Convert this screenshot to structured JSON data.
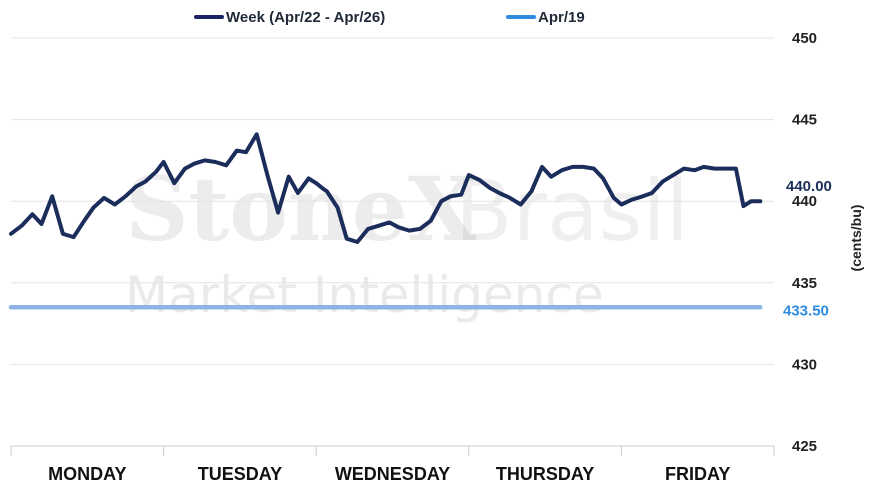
{
  "watermark": {
    "brand_bold": "StoneX",
    "brand_light": "Brasil",
    "subtitle": "Market Intelligence"
  },
  "chart_data": {
    "type": "line",
    "title": "",
    "xlabel": "",
    "ylabel": "(cents/bu)",
    "ylim": [
      425,
      451
    ],
    "yticks": [
      425,
      430,
      435,
      440,
      445,
      450
    ],
    "grid": true,
    "legend_position": "top",
    "categories": [
      "MONDAY",
      "TUESDAY",
      "WEDNESDAY",
      "THURSDAY",
      "FRIDAY"
    ],
    "series": [
      {
        "name": "Week (Apr/22 - Apr/26)",
        "color": "#1b2d5b",
        "end_label": "440.00",
        "x": [
          0.0,
          0.07,
          0.14,
          0.2,
          0.27,
          0.34,
          0.41,
          0.48,
          0.54,
          0.61,
          0.68,
          0.75,
          0.82,
          0.88,
          0.95,
          1.0,
          1.07,
          1.14,
          1.2,
          1.27,
          1.34,
          1.41,
          1.48,
          1.54,
          1.61,
          1.68,
          1.75,
          1.82,
          1.88,
          1.95,
          2.0,
          2.04,
          2.07,
          2.14,
          2.2,
          2.27,
          2.34,
          2.41,
          2.48,
          2.54,
          2.61,
          2.68,
          2.75,
          2.82,
          2.88,
          2.95,
          3.0,
          3.07,
          3.14,
          3.2,
          3.27,
          3.34,
          3.41,
          3.48,
          3.54,
          3.61,
          3.68,
          3.75,
          3.82,
          3.88,
          3.95,
          4.0,
          4.07,
          4.14,
          4.2,
          4.27,
          4.34,
          4.41,
          4.48,
          4.54,
          4.61,
          4.68,
          4.75,
          4.8,
          4.85,
          4.91
        ],
        "values": [
          438.0,
          438.5,
          439.2,
          438.6,
          440.3,
          438.0,
          437.8,
          438.8,
          439.6,
          440.2,
          439.8,
          440.3,
          440.9,
          441.2,
          441.8,
          442.4,
          441.1,
          442.0,
          442.3,
          442.5,
          442.4,
          442.2,
          443.1,
          443.0,
          444.1,
          441.6,
          439.3,
          441.5,
          440.5,
          441.4,
          441.1,
          440.8,
          440.6,
          439.6,
          437.7,
          437.5,
          438.3,
          438.5,
          438.7,
          438.4,
          438.2,
          438.3,
          438.8,
          440.0,
          440.3,
          440.4,
          441.6,
          441.3,
          440.8,
          440.5,
          440.2,
          439.8,
          440.6,
          442.1,
          441.5,
          441.9,
          442.1,
          442.1,
          442.0,
          441.4,
          440.2,
          439.8,
          440.1,
          440.3,
          440.5,
          441.2,
          441.6,
          442.0,
          441.9,
          442.1,
          442.0,
          442.0,
          442.0,
          439.7,
          440.0,
          440.0
        ]
      },
      {
        "name": "Apr/19",
        "color": "#2f8be0",
        "end_label": "433.50",
        "x": [
          0,
          4.91
        ],
        "values": [
          433.5,
          433.5
        ]
      }
    ]
  }
}
